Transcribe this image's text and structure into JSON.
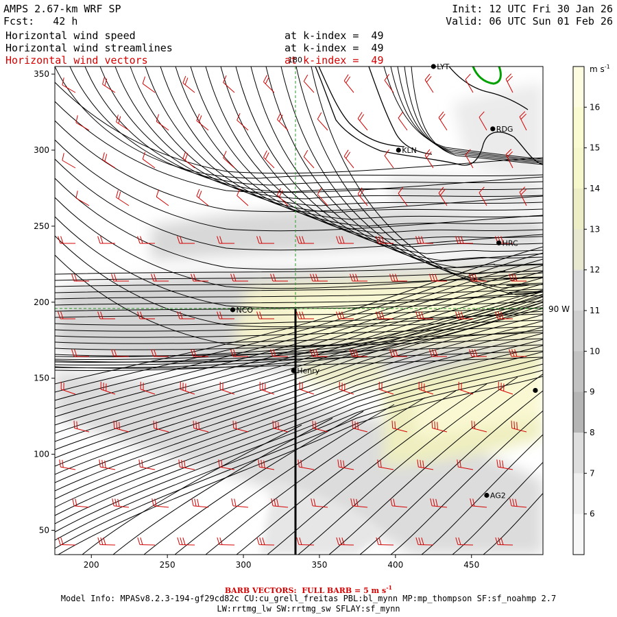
{
  "header": {
    "model": "AMPS 2.67-km WRF SP",
    "forecast": "Fcst:   42 h",
    "init": "Init: 12 UTC Fri 30 Jan 26",
    "valid": "Valid: 06 UTC Sun 01 Feb 26",
    "fields": [
      {
        "name": "Horizontal wind speed",
        "level": "at k-index =  49",
        "color": "#000000"
      },
      {
        "name": "Horizontal wind streamlines",
        "level": "at k-index =  49",
        "color": "#000000"
      },
      {
        "name": "Horizontal wind vectors",
        "level": "at k-index =  49",
        "color": "#d40000"
      }
    ]
  },
  "map": {
    "x_ticks": [
      "200",
      "250",
      "300",
      "350",
      "400",
      "450"
    ],
    "y_ticks": [
      "50",
      "100",
      "150",
      "200",
      "250",
      "300",
      "350"
    ],
    "meridian_label": "180",
    "parallel_label": "90 W",
    "stations": [
      {
        "name": "LYT",
        "x": 425,
        "y": 355
      },
      {
        "name": "RDG",
        "x": 464,
        "y": 314
      },
      {
        "name": "KLN",
        "x": 402,
        "y": 300
      },
      {
        "name": "HRC",
        "x": 468,
        "y": 239
      },
      {
        "name": "NCO",
        "x": 293,
        "y": 195
      },
      {
        "name": "Henry",
        "x": 333,
        "y": 155
      },
      {
        "name": "",
        "x": 492,
        "y": 142
      },
      {
        "name": "AG2",
        "x": 460,
        "y": 73
      }
    ]
  },
  "colorbar": {
    "units": "m s",
    "units_exp": "-1",
    "levels": [
      "16",
      "15",
      "14",
      "13",
      "12",
      "11",
      "10",
      "9",
      "8",
      "7",
      "6"
    ],
    "colors": [
      "#fdfce0",
      "#fbfbd2",
      "#f7f7cc",
      "#eeeec6",
      "#e8e8d0",
      "#dcdcdc",
      "#cfcfcf",
      "#c2c2c2",
      "#b5b5b5",
      "#dedede",
      "#eeeeee",
      "#f7f7f7"
    ]
  },
  "footer": {
    "barb": "BARB VECTORS:  FULL BARB = 5 m s",
    "barb_exp": "-1",
    "info1": "Model Info: MPASv8.2.3-194-gf29cd82c CU:cu_grell_freitas PBL:bl_mynn MP:mp_thompson SF:sf_noahmp 2.7",
    "info2": "LW:rrtmg_lw SW:rrtmg_sw SFLAY:sf_mynn"
  }
}
